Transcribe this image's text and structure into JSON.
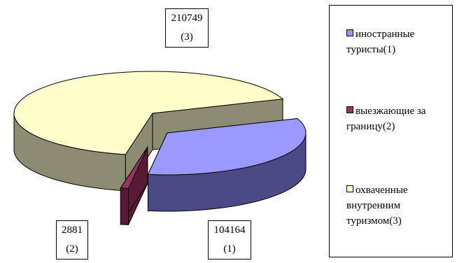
{
  "chart_data": {
    "type": "pie",
    "style": "3d-exploded",
    "slices": [
      {
        "label": "иностранные туристы(1)",
        "value": 104164,
        "data_label_value": "104164",
        "data_label_index": "(1)",
        "color": "#9999ff",
        "side_color": "#4a4a86"
      },
      {
        "label": "выезжающие за границу(2)",
        "value": 2881,
        "data_label_value": "2881",
        "data_label_index": "(2)",
        "color": "#993366",
        "side_color": "#5a1a36"
      },
      {
        "label": "охваченные внутренним туризмом(3)",
        "value": 210749,
        "data_label_value": "210749",
        "data_label_index": "(3)",
        "color": "#ffffcc",
        "side_color": "#8c8c70"
      }
    ],
    "legend_position": "right"
  }
}
